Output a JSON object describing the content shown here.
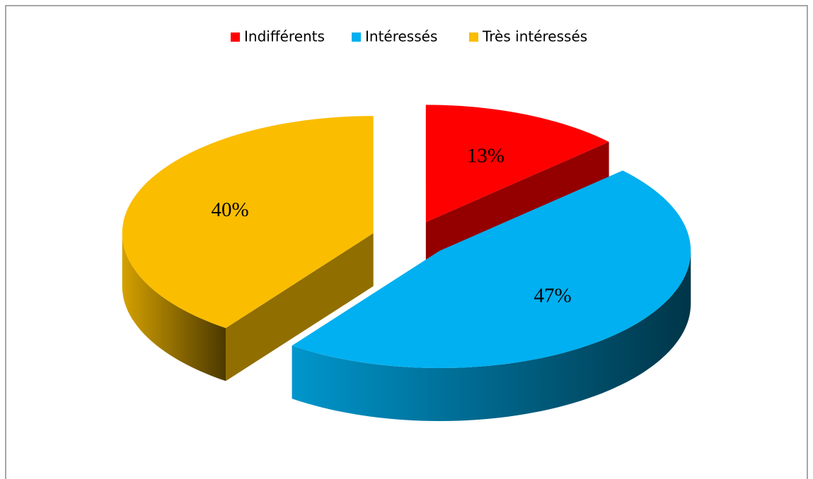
{
  "chart_data": {
    "type": "pie",
    "categories": [
      "Indifférents",
      "Intéressés",
      "Très intéressés"
    ],
    "values": [
      13,
      47,
      40
    ],
    "value_labels": [
      "13%",
      "47%",
      "40%"
    ],
    "colors": [
      "#ff0000",
      "#00b0f0",
      "#fabd00"
    ],
    "legend": "top"
  }
}
